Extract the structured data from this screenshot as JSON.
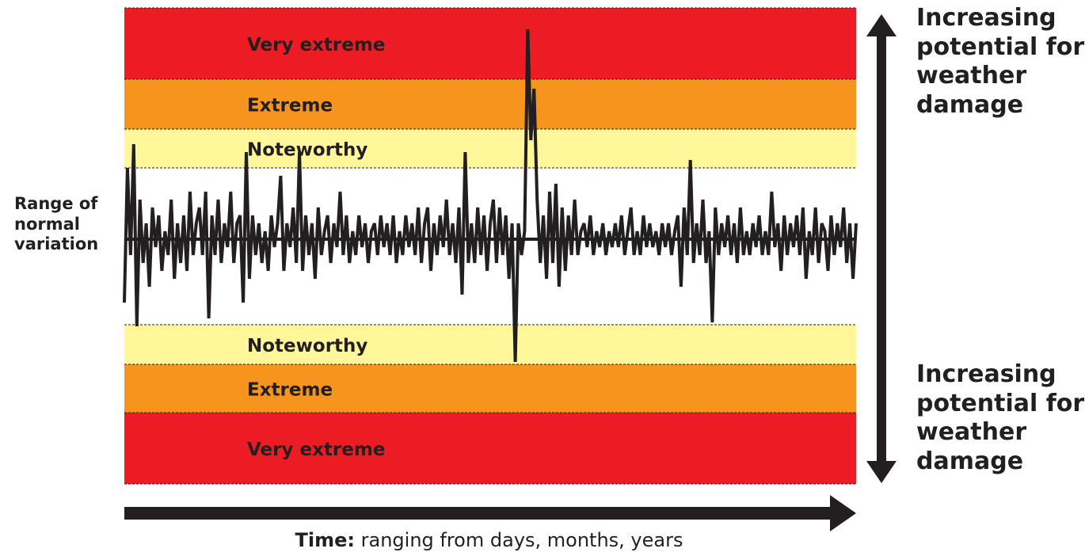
{
  "zones": [
    {
      "label": "Very extreme",
      "color": "#ed1c24"
    },
    {
      "label": "Extreme",
      "color": "#f7941d"
    },
    {
      "label": "Noteworthy",
      "color": "#fff799"
    },
    {
      "label": "",
      "color": "#ffffff"
    },
    {
      "label": "Noteworthy",
      "color": "#fff799"
    },
    {
      "label": "Extreme",
      "color": "#f7941d"
    },
    {
      "label": "Very extreme",
      "color": "#ed1c24"
    }
  ],
  "normal_range_label": {
    "line1": "Range of",
    "line2": "normal",
    "line3": "variation"
  },
  "upper_damage_label": {
    "line1": "Increasing",
    "line2": "potential for",
    "line3": "weather",
    "line4": "damage"
  },
  "lower_damage_label": {
    "line1": "Increasing",
    "line2": "potential for",
    "line3": "weather",
    "line4": "damage"
  },
  "time_axis": {
    "bold": "Time:",
    "rest": " ranging from days, months, years"
  },
  "line_color": "#231f20",
  "series_values": [
    -0.8,
    0.9,
    -0.2,
    1.2,
    -1.1,
    0.5,
    -0.3,
    0.2,
    -0.6,
    0.4,
    -0.1,
    0.3,
    -0.4,
    0.1,
    -0.2,
    0.5,
    -0.5,
    0.2,
    -0.3,
    0.3,
    -0.4,
    0.6,
    -0.2,
    0.2,
    0.4,
    -0.2,
    0.6,
    -1.0,
    0.3,
    -0.2,
    0.5,
    -0.3,
    0.2,
    -0.1,
    0.6,
    -0.3,
    0.2,
    0.3,
    -0.8,
    1.1,
    -0.5,
    0.3,
    -0.2,
    0.2,
    -0.3,
    0.1,
    -0.4,
    0.3,
    -0.1,
    0.2,
    0.8,
    -0.4,
    0.2,
    -0.1,
    0.4,
    -0.3,
    1.1,
    -0.4,
    0.3,
    -0.2,
    0.2,
    -0.5,
    0.4,
    -0.2,
    0.1,
    0.3,
    -0.3,
    0.2,
    -0.1,
    0.6,
    -0.2,
    0.3,
    -0.3,
    0.1,
    -0.2,
    0.3,
    -0.1,
    0.2,
    -0.3,
    0.1,
    0.2,
    -0.2,
    0.3,
    -0.1,
    0.2,
    -0.2,
    0.3,
    -0.3,
    0.1,
    -0.2,
    0.3,
    -0.1,
    0.2,
    -0.2,
    0.4,
    -0.3,
    0.2,
    0.4,
    -0.4,
    0.2,
    -0.2,
    0.3,
    -0.1,
    0.5,
    -0.2,
    0.2,
    -0.3,
    0.4,
    -0.7,
    1.1,
    -0.3,
    0.2,
    -0.3,
    0.4,
    -0.2,
    0.3,
    -0.4,
    0.2,
    0.5,
    -0.3,
    0.4,
    -0.2,
    0.3,
    -0.5,
    0.2,
    -1.55,
    0.2,
    -0.2,
    0.1,
    2.65,
    1.25,
    1.9,
    0.5,
    -0.3,
    0.3,
    -0.5,
    0.6,
    -0.3,
    0.7,
    -0.6,
    0.4,
    -0.4,
    0.3,
    -0.2,
    0.5,
    -0.2,
    0.1,
    0.2,
    -0.1,
    0.3,
    -0.2,
    0.1,
    -0.1,
    0.2,
    -0.2,
    0.1,
    -0.1,
    0.2,
    -0.1,
    0.3,
    -0.2,
    0.1,
    0.4,
    -0.2,
    0.1,
    -0.2,
    0.3,
    -0.1,
    0.2,
    -0.1,
    0.1,
    -0.2,
    0.2,
    -0.1,
    0.2,
    -0.2,
    0.1,
    0.3,
    -0.6,
    0.4,
    -0.2,
    1.0,
    -0.3,
    0.2,
    -0.2,
    0.5,
    -0.3,
    0.1,
    -1.05,
    0.4,
    -0.2,
    0.2,
    -0.1,
    0.3,
    -0.2,
    0.2,
    -0.3,
    0.4,
    -0.2,
    0.1,
    -0.2,
    0.2,
    -0.1,
    0.3,
    -0.2,
    0.1,
    -0.2,
    0.6,
    -0.1,
    0.2,
    -0.4,
    0.3,
    -0.2,
    0.2,
    -0.1,
    0.3,
    -0.2,
    0.4,
    -0.5,
    0.1,
    -0.2,
    0.4,
    -0.3,
    0.2,
    0.1,
    -0.4,
    0.3,
    -0.2,
    0.2,
    -0.1,
    0.4,
    -0.3,
    0.2,
    -0.5,
    0.2
  ]
}
